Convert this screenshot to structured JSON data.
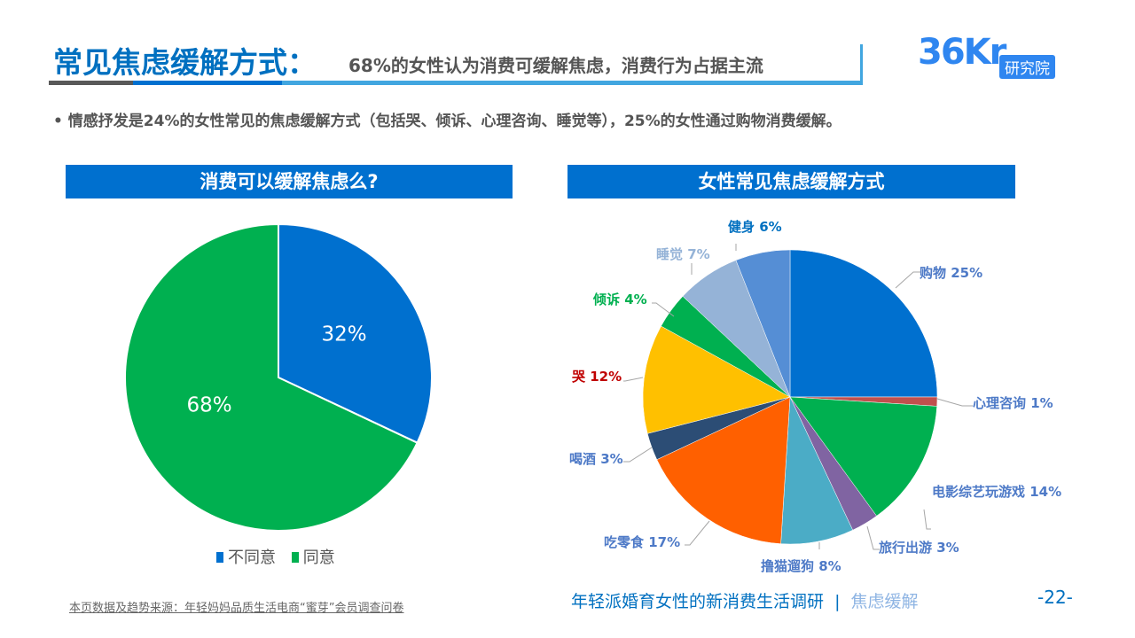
{
  "header": {
    "title": "常见焦虑缓解方式：",
    "subtitle": "68%的女性认为消费可缓解焦虑，消费行为占据主流"
  },
  "logo": {
    "mark": "36Kr",
    "text": "研究院",
    "color": "#2F86F0"
  },
  "bullet": "•   情感抒发是24%的女性常见的焦虑缓解方式（包括哭、倾诉、心理咨询、睡觉等），25%的女性通过购物消费缓解。",
  "footer": {
    "source": "本页数据及趋势来源：年轻妈妈品质生活电商“蜜芽”会员调查问卷",
    "report": "年轻派婚育女性的新消费生活调研",
    "separator": "|",
    "section": "焦虑缓解",
    "page": "-22-"
  },
  "chart_data": [
    {
      "type": "pie",
      "title": "消费可以缓解焦虑么?",
      "legend": "bottom",
      "start": "top-clockwise",
      "slices": [
        {
          "name": "不同意",
          "value": 32,
          "label": "32%",
          "color": "#0070CF"
        },
        {
          "name": "同意",
          "value": 68,
          "label": "68%",
          "color": "#00B050"
        }
      ]
    },
    {
      "type": "pie",
      "title": "女性常见焦虑缓解方式",
      "legend": "none",
      "start": "top-clockwise",
      "slices": [
        {
          "name": "购物",
          "value": 25,
          "label": "购物 25%",
          "color": "#0070CF",
          "label_color": "#4E7AC7"
        },
        {
          "name": "心理咨询",
          "value": 1,
          "label": "心理咨询 1%",
          "color": "#C0504D",
          "label_color": "#4E7AC7"
        },
        {
          "name": "电影综艺玩游戏",
          "value": 14,
          "label": "电影综艺玩游戏 14%",
          "color": "#00B050",
          "label_color": "#4E7AC7"
        },
        {
          "name": "旅行出游",
          "value": 3,
          "label": "旅行出游 3%",
          "color": "#8064A2",
          "label_color": "#4E7AC7"
        },
        {
          "name": "撸猫遛狗",
          "value": 8,
          "label": "撸猫遛狗 8%",
          "color": "#4BACC6",
          "label_color": "#4E7AC7"
        },
        {
          "name": "吃零食",
          "value": 17,
          "label": "吃零食 17%",
          "color": "#FF6000",
          "label_color": "#4E7AC7"
        },
        {
          "name": "喝酒",
          "value": 3,
          "label": "喝酒 3%",
          "color": "#2C4D75",
          "label_color": "#4E7AC7"
        },
        {
          "name": "哭",
          "value": 12,
          "label": "哭 12%",
          "color": "#FFC000",
          "label_color": "#C00000"
        },
        {
          "name": "倾诉",
          "value": 4,
          "label": "倾诉 4%",
          "color": "#00B050",
          "label_color": "#00B050"
        },
        {
          "name": "睡觉",
          "value": 7,
          "label": "睡觉 7%",
          "color": "#95B3D7",
          "label_color": "#95B3D7"
        },
        {
          "name": "健身",
          "value": 6,
          "label": "健身 6%",
          "color": "#558ED5",
          "label_color": "#0070C0"
        }
      ]
    }
  ]
}
